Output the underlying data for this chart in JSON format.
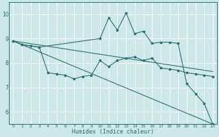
{
  "title": "",
  "xlabel": "Humidex (Indice chaleur)",
  "ylabel": "",
  "bg_color": "#cce8e8",
  "grid_color": "#ffffff",
  "line_color": "#2e6e6e",
  "xlim": [
    -0.5,
    23.5
  ],
  "ylim": [
    5.5,
    10.5
  ],
  "yticks": [
    6,
    7,
    8,
    9,
    10
  ],
  "xticks": [
    0,
    1,
    2,
    3,
    4,
    5,
    6,
    7,
    8,
    9,
    10,
    11,
    12,
    13,
    14,
    15,
    16,
    17,
    18,
    19,
    20,
    21,
    22,
    23
  ],
  "series": [
    {
      "x": [
        0,
        23
      ],
      "y": [
        8.9,
        7.65
      ],
      "marker": false
    },
    {
      "x": [
        0,
        23
      ],
      "y": [
        8.9,
        5.5
      ],
      "marker": false
    },
    {
      "x": [
        0,
        1,
        2,
        3,
        4,
        5,
        6,
        7,
        8,
        9,
        10,
        11,
        12,
        13,
        14,
        15,
        16,
        17,
        18,
        19,
        20,
        21,
        22,
        23
      ],
      "y": [
        8.9,
        8.75,
        8.7,
        8.65,
        7.6,
        7.55,
        7.5,
        7.35,
        7.45,
        7.5,
        8.1,
        7.85,
        8.1,
        8.2,
        8.25,
        8.1,
        8.2,
        7.8,
        7.75,
        7.7,
        7.6,
        7.55,
        7.5,
        7.45
      ],
      "marker": true
    },
    {
      "x": [
        0,
        1,
        2,
        3,
        10,
        11,
        12,
        13,
        14,
        15,
        16,
        17,
        18,
        19,
        20,
        21,
        22,
        23
      ],
      "y": [
        8.9,
        8.75,
        8.7,
        8.65,
        9.0,
        9.85,
        9.35,
        10.05,
        9.2,
        9.3,
        8.8,
        8.85,
        8.85,
        8.8,
        7.15,
        6.75,
        6.35,
        5.5
      ],
      "marker": true
    }
  ]
}
